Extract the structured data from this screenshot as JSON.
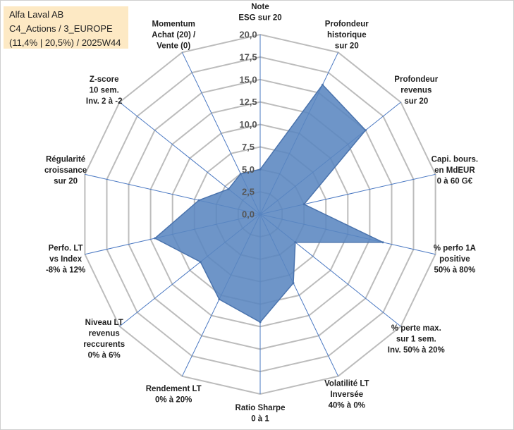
{
  "info": {
    "line1": "Alfa Laval AB",
    "line2": "C4_Actions / 3_EUROPE",
    "line3": "(11,4% | 20,5%) / 2025W44"
  },
  "colors": {
    "fill": "#5a86c0",
    "stroke": "#4a73ad",
    "grid": "#bcbcbc",
    "spoke": "#4a78c2",
    "infobox": "#fde9c4"
  },
  "chart_data": {
    "type": "radar",
    "title": "",
    "range": [
      0,
      20
    ],
    "ticks": [
      "0,0",
      "2,5",
      "5,0",
      "7,5",
      "10,0",
      "12,5",
      "15,0",
      "17,5",
      "20,0"
    ],
    "grid": true,
    "axes": [
      {
        "label": [
          "Note",
          "ESG sur 20"
        ],
        "value": 5.0
      },
      {
        "label": [
          "Profondeur",
          "historique",
          "sur 20"
        ],
        "value": 16.0
      },
      {
        "label": [
          "Profondeur",
          "revenus",
          "sur 20"
        ],
        "value": 15.0
      },
      {
        "label": [
          "Capi. bours.",
          "en MdEUR",
          "0 à 60 G€"
        ],
        "value": 5.0
      },
      {
        "label": [
          "% perfo 1A",
          "positive",
          "50% à 80%"
        ],
        "value": 14.0
      },
      {
        "label": [
          "% perte max.",
          "sur 1 sem.",
          "Inv. 50% à 20%"
        ],
        "value": 5.0
      },
      {
        "label": [
          "Volatilité LT",
          "Inversée",
          "40% à 0%"
        ],
        "value": 8.5
      },
      {
        "label": [
          "Ratio Sharpe",
          "0 à 1"
        ],
        "value": 12.0
      },
      {
        "label": [
          "Rendement LT",
          "0% à 20%"
        ],
        "value": 10.5
      },
      {
        "label": [
          "Niveau LT",
          "revenus",
          "reccurents",
          "0% à 6%"
        ],
        "value": 8.5
      },
      {
        "label": [
          "Perfo. LT",
          "vs Index",
          "-8% à 12%"
        ],
        "value": 12.0
      },
      {
        "label": [
          "Régularité",
          "croissance",
          "sur 20"
        ],
        "value": 7.0
      },
      {
        "label": [
          "Z-score",
          "10 sem.",
          "Inv. 2 à -2"
        ],
        "value": 4.5
      },
      {
        "label": [
          "Momentum",
          "Achat (20) /",
          "Vente (0)"
        ],
        "value": 5.0
      }
    ]
  }
}
